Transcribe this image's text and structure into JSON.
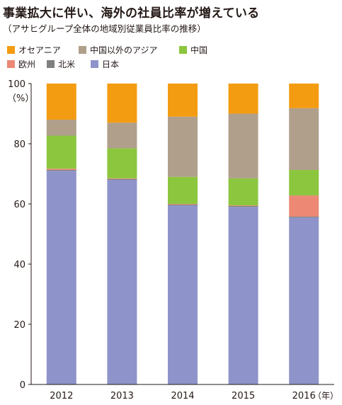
{
  "title": "事業拡大に伴い、海外の社員比率が増えている",
  "subtitle": "（アサヒグループ全体の地域別従業員比率の推移）",
  "chart_data": {
    "type": "bar",
    "stacked": true,
    "categories": [
      "2012",
      "2013",
      "2014",
      "2015",
      "2016"
    ],
    "x_unit": "（年）",
    "y_unit": "（%）",
    "ylim": [
      0,
      100
    ],
    "yticks": [
      0,
      20,
      40,
      60,
      80,
      100
    ],
    "grid": false,
    "series": [
      {
        "name": "日本",
        "color": "#8e94c9",
        "values": [
          71,
          68,
          59.5,
          59,
          55.5
        ]
      },
      {
        "name": "北米",
        "color": "#7f7f7f",
        "values": [
          0.3,
          0.3,
          0.3,
          0.3,
          0.3
        ]
      },
      {
        "name": "欧州",
        "color": "#ec8874",
        "values": [
          0.4,
          0.2,
          0.2,
          0.2,
          7
        ]
      },
      {
        "name": "中国",
        "color": "#8cc63f",
        "values": [
          11,
          10,
          9,
          9,
          8.5
        ]
      },
      {
        "name": "中国以外のアジア",
        "color": "#b09f8b",
        "values": [
          5.3,
          8.5,
          20,
          21.5,
          20.5
        ]
      },
      {
        "name": "オセアニア",
        "color": "#f39c12",
        "values": [
          12,
          13,
          11,
          10,
          8.2
        ]
      }
    ]
  },
  "legend": [
    {
      "name": "オセアニア",
      "color": "#f39c12"
    },
    {
      "name": "中国以外のアジア",
      "color": "#b09f8b"
    },
    {
      "name": "中国",
      "color": "#8cc63f"
    },
    {
      "name": "欧州",
      "color": "#ec8874"
    },
    {
      "name": "北米",
      "color": "#7f7f7f"
    },
    {
      "name": "日本",
      "color": "#8e94c9"
    }
  ]
}
